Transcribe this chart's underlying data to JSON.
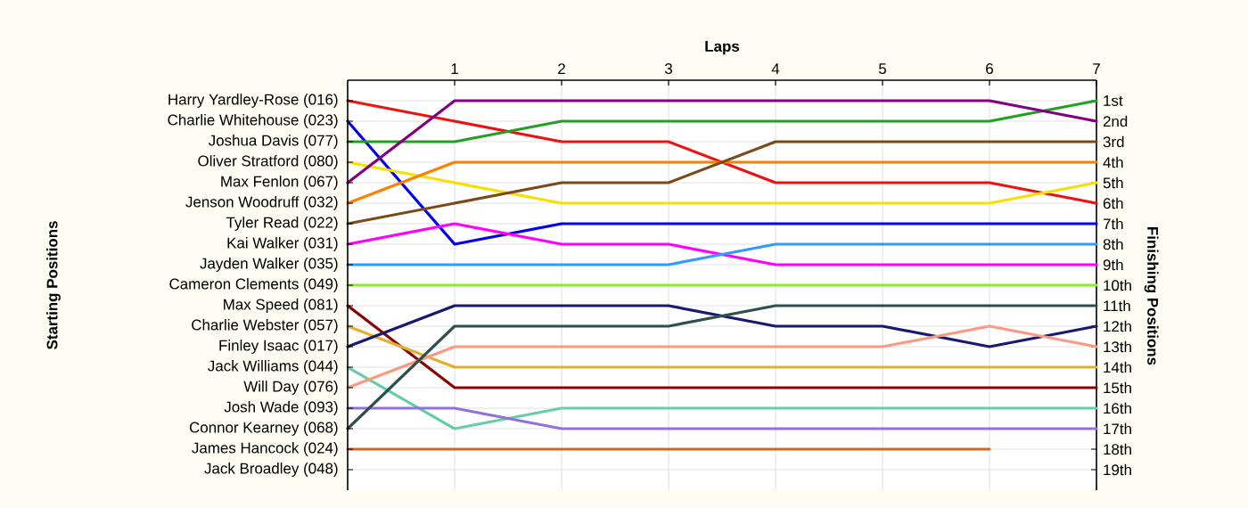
{
  "chart_data": {
    "type": "line",
    "xlabel": "Laps",
    "ylabel": "Finishing Positions",
    "x": [
      0,
      1,
      2,
      3,
      4,
      5,
      6,
      7
    ],
    "xlim": [
      0,
      7
    ],
    "xticks": [
      1,
      2,
      3,
      4,
      5,
      6,
      7
    ],
    "ylim": [
      20,
      0
    ],
    "grid": true,
    "yticks": [
      {
        "value": 1,
        "label": "1st"
      },
      {
        "value": 2,
        "label": "2nd"
      },
      {
        "value": 3,
        "label": "3rd"
      },
      {
        "value": 4,
        "label": "4th"
      },
      {
        "value": 5,
        "label": "5th"
      },
      {
        "value": 6,
        "label": "6th"
      },
      {
        "value": 7,
        "label": "7th"
      },
      {
        "value": 8,
        "label": "8th"
      },
      {
        "value": 9,
        "label": "9th"
      },
      {
        "value": 10,
        "label": "10th"
      },
      {
        "value": 11,
        "label": "11th"
      },
      {
        "value": 12,
        "label": "12th"
      },
      {
        "value": 13,
        "label": "13th"
      },
      {
        "value": 14,
        "label": "14th"
      },
      {
        "value": 15,
        "label": "15th"
      },
      {
        "value": 16,
        "label": "16th"
      },
      {
        "value": 17,
        "label": "17th"
      },
      {
        "value": 18,
        "label": "18th"
      },
      {
        "value": 19,
        "label": "19th"
      }
    ],
    "annotations": [
      "Starting Positions",
      "Harry Yardley-Rose (016)",
      "Charlie Whitehouse (023)",
      "Joshua Davis (077)",
      "Oliver Stratford (080)",
      "Max Fenlon (067)",
      "Jenson Woodruff (032)",
      "Tyler Read (022)",
      "Kai Walker (031)",
      "Jayden Walker (035)",
      "Cameron Clements (049)",
      "Max Speed (081)",
      "Charlie Webster (057)",
      "Finley Isaac (017)",
      "Jack Williams (044)",
      "Will Day (076)",
      "Josh Wade (093)",
      "Connor Kearney (068)",
      "James Hancock (024)",
      "Jack Broadley (048)"
    ],
    "series": [
      {
        "color": "#ee1111",
        "values": [
          1,
          2,
          3,
          3,
          5,
          5,
          5,
          6
        ]
      },
      {
        "color": "#0000ee",
        "values": [
          2,
          8,
          7,
          7,
          7,
          7,
          7,
          7
        ]
      },
      {
        "color": "#22a022",
        "values": [
          3,
          3,
          2,
          2,
          2,
          2,
          2,
          1
        ]
      },
      {
        "color": "#f5e000",
        "values": [
          4,
          5,
          6,
          6,
          6,
          6,
          6,
          5
        ]
      },
      {
        "color": "#800080",
        "values": [
          5,
          1,
          1,
          1,
          1,
          1,
          1,
          2
        ]
      },
      {
        "color": "#ff8000",
        "values": [
          6,
          4,
          4,
          4,
          4,
          4,
          4,
          4
        ]
      },
      {
        "color": "#7b4a1a",
        "values": [
          7,
          6,
          5,
          5,
          3,
          3,
          3,
          3
        ]
      },
      {
        "color": "#ff00ff",
        "values": [
          8,
          7,
          8,
          8,
          9,
          9,
          9,
          9
        ]
      },
      {
        "color": "#3399ff",
        "values": [
          9,
          9,
          9,
          9,
          8,
          8,
          8,
          8
        ]
      },
      {
        "color": "#88ee22",
        "values": [
          10,
          10,
          10,
          10,
          10,
          10,
          10,
          10
        ]
      },
      {
        "color": "#8b0000",
        "values": [
          11,
          15,
          15,
          15,
          15,
          15,
          15,
          15
        ]
      },
      {
        "color": "#e0b030",
        "values": [
          12,
          14,
          14,
          14,
          14,
          14,
          14,
          14
        ]
      },
      {
        "color": "#191970",
        "values": [
          13,
          11,
          11,
          11,
          12,
          12,
          13,
          12
        ]
      },
      {
        "color": "#66cdaa",
        "values": [
          14,
          17,
          16,
          16,
          16,
          16,
          16,
          16
        ]
      },
      {
        "color": "#fa9a80",
        "values": [
          15,
          13,
          13,
          13,
          13,
          13,
          12,
          13
        ]
      },
      {
        "color": "#9370db",
        "values": [
          16,
          16,
          17,
          17,
          17,
          17,
          17,
          17
        ]
      },
      {
        "color": "#2f4f4f",
        "values": [
          17,
          12,
          12,
          12,
          11,
          11,
          11,
          11
        ]
      },
      {
        "color": "#d2691e",
        "values": [
          18,
          18,
          18,
          18,
          18,
          18,
          18,
          null
        ]
      }
    ]
  }
}
